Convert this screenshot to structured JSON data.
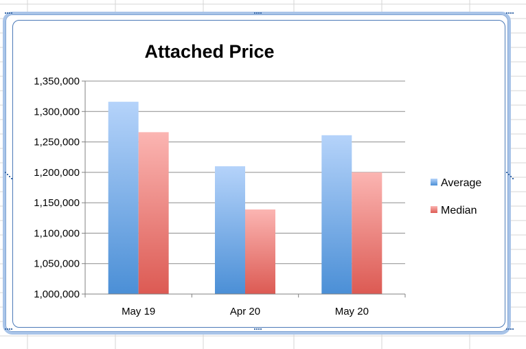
{
  "chart_data": {
    "type": "bar",
    "title": "Attached Price",
    "categories": [
      "May 19",
      "Apr 20",
      "May 20"
    ],
    "series": [
      {
        "name": "Average",
        "values": [
          1316000,
          1210000,
          1261000
        ],
        "color_top": "#b5d3fa",
        "color_bottom": "#4b8fd6"
      },
      {
        "name": "Median",
        "values": [
          1266000,
          1139000,
          1200000
        ],
        "color_top": "#fbb5b2",
        "color_bottom": "#dc5a53"
      }
    ],
    "ylim": [
      1000000,
      1350000
    ],
    "yticks": [
      1000000,
      1050000,
      1100000,
      1150000,
      1200000,
      1250000,
      1300000,
      1350000
    ],
    "ytick_labels": [
      "1,000,000",
      "1,050,000",
      "1,100,000",
      "1,150,000",
      "1,200,000",
      "1,250,000",
      "1,300,000",
      "1,350,000"
    ],
    "grid": true,
    "legend_position": "right"
  },
  "colors": {
    "frame_border": "#a9c4e8",
    "inner_border": "#4a79b7",
    "gridline": "#8c8c8c",
    "sheet_grid": "#d4d4d4"
  }
}
